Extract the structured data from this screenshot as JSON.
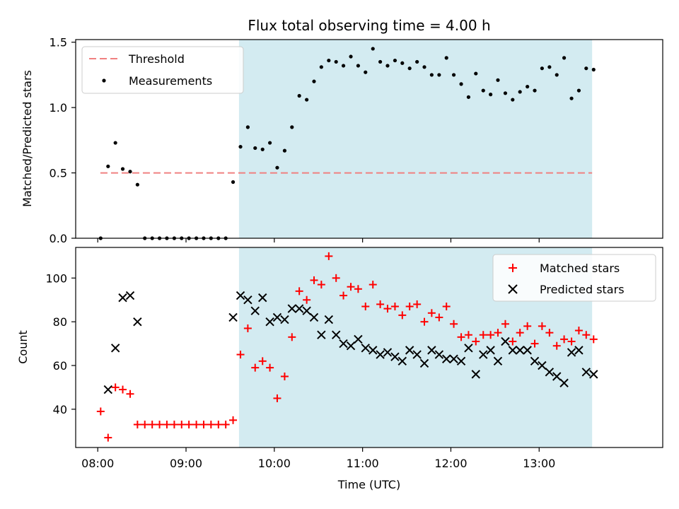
{
  "chart_data": [
    {
      "type": "scatter",
      "title": "Flux total observing time = 4.00 h",
      "ylabel": "Matched/Predicted stars",
      "xlabel": "",
      "ylim": [
        0,
        1.52
      ],
      "yticks": [
        0,
        0.5,
        1.0,
        1.5
      ],
      "ytick_labels": [
        "0.0",
        "0.5",
        "1.0",
        "1.5"
      ],
      "xlim_hours": [
        7.75,
        14.4
      ],
      "shaded_span_hours": [
        9.6,
        13.6
      ],
      "shade_color": "#d3ebf1",
      "legend_position": "top-left",
      "threshold": {
        "name": "Threshold",
        "value": 0.5,
        "x_range_hours": [
          8.03,
          13.6
        ],
        "color": "#f08080"
      },
      "series": [
        {
          "name": "Measurements",
          "color": "#000000",
          "marker": "dot",
          "x": [
            8.033,
            8.117,
            8.2,
            8.283,
            8.367,
            8.45,
            8.533,
            8.617,
            8.7,
            8.783,
            8.867,
            8.95,
            9.033,
            9.117,
            9.2,
            9.283,
            9.367,
            9.45,
            9.533,
            9.617,
            9.7,
            9.783,
            9.867,
            9.95,
            10.033,
            10.117,
            10.2,
            10.283,
            10.367,
            10.45,
            10.533,
            10.617,
            10.7,
            10.783,
            10.867,
            10.95,
            11.033,
            11.117,
            11.2,
            11.283,
            11.367,
            11.45,
            11.533,
            11.617,
            11.7,
            11.783,
            11.867,
            11.95,
            12.033,
            12.117,
            12.2,
            12.283,
            12.367,
            12.45,
            12.533,
            12.617,
            12.7,
            12.783,
            12.867,
            12.95,
            13.033,
            13.117,
            13.2,
            13.283,
            13.367,
            13.45,
            13.533,
            13.617
          ],
          "y": [
            0.0,
            0.55,
            0.73,
            0.53,
            0.51,
            0.41,
            0.0,
            0.0,
            0.0,
            0.0,
            0.0,
            0.0,
            0.0,
            0.0,
            0.0,
            0.0,
            0.0,
            0.0,
            0.43,
            0.7,
            0.85,
            0.69,
            0.68,
            0.73,
            0.54,
            0.67,
            0.85,
            1.09,
            1.06,
            1.2,
            1.31,
            1.36,
            1.35,
            1.32,
            1.39,
            1.32,
            1.27,
            1.45,
            1.35,
            1.32,
            1.36,
            1.34,
            1.3,
            1.35,
            1.31,
            1.25,
            1.25,
            1.38,
            1.25,
            1.18,
            1.08,
            1.26,
            1.13,
            1.1,
            1.21,
            1.11,
            1.06,
            1.12,
            1.16,
            1.13,
            1.3,
            1.31,
            1.25,
            1.38,
            1.07,
            1.13,
            1.3,
            1.29
          ]
        }
      ]
    },
    {
      "type": "scatter",
      "ylabel": "Count",
      "xlabel": "Time (UTC)",
      "ylim": [
        22.5,
        114
      ],
      "yticks": [
        40,
        60,
        80,
        100
      ],
      "ytick_labels": [
        "40",
        "60",
        "80",
        "100"
      ],
      "xticks_hours": [
        8,
        9,
        10,
        11,
        12,
        13
      ],
      "xtick_labels": [
        "08:00",
        "09:00",
        "10:00",
        "11:00",
        "12:00",
        "13:00"
      ],
      "xlim_hours": [
        7.75,
        14.4
      ],
      "shaded_span_hours": [
        9.6,
        13.6
      ],
      "shade_color": "#d3ebf1",
      "legend_position": "top-right",
      "series": [
        {
          "name": "Matched stars",
          "color": "#ff0000",
          "marker": "plus",
          "x": [
            8.033,
            8.117,
            8.2,
            8.283,
            8.367,
            8.45,
            8.533,
            8.617,
            8.7,
            8.783,
            8.867,
            8.95,
            9.033,
            9.117,
            9.2,
            9.283,
            9.367,
            9.45,
            9.533,
            9.617,
            9.7,
            9.783,
            9.867,
            9.95,
            10.033,
            10.117,
            10.2,
            10.283,
            10.367,
            10.45,
            10.533,
            10.617,
            10.7,
            10.783,
            10.867,
            10.95,
            11.033,
            11.117,
            11.2,
            11.283,
            11.367,
            11.45,
            11.533,
            11.617,
            11.7,
            11.783,
            11.867,
            11.95,
            12.033,
            12.117,
            12.2,
            12.283,
            12.367,
            12.45,
            12.533,
            12.617,
            12.7,
            12.783,
            12.867,
            12.95,
            13.033,
            13.117,
            13.2,
            13.283,
            13.367,
            13.45,
            13.533,
            13.617
          ],
          "y": [
            39,
            27,
            50,
            49,
            47,
            33,
            33,
            33,
            33,
            33,
            33,
            33,
            33,
            33,
            33,
            33,
            33,
            33,
            35,
            65,
            77,
            59,
            62,
            59,
            45,
            55,
            73,
            94,
            90,
            99,
            97,
            110,
            100,
            92,
            96,
            95,
            87,
            97,
            88,
            86,
            87,
            83,
            87,
            88,
            80,
            84,
            82,
            87,
            79,
            73,
            74,
            71,
            74,
            74,
            75,
            79,
            71,
            75,
            78,
            70,
            78,
            75,
            69,
            72,
            71,
            76,
            74,
            72
          ]
        },
        {
          "name": "Predicted stars",
          "color": "#000000",
          "marker": "cross",
          "x": [
            8.117,
            8.2,
            8.283,
            8.367,
            8.45,
            9.533,
            9.617,
            9.7,
            9.783,
            9.867,
            9.95,
            10.033,
            10.117,
            10.2,
            10.283,
            10.367,
            10.45,
            10.533,
            10.617,
            10.7,
            10.783,
            10.867,
            10.95,
            11.033,
            11.117,
            11.2,
            11.283,
            11.367,
            11.45,
            11.533,
            11.617,
            11.7,
            11.783,
            11.867,
            11.95,
            12.033,
            12.117,
            12.2,
            12.283,
            12.367,
            12.45,
            12.533,
            12.617,
            12.7,
            12.783,
            12.867,
            12.95,
            13.033,
            13.117,
            13.2,
            13.283,
            13.367,
            13.45,
            13.533,
            13.617
          ],
          "y": [
            49,
            68,
            91,
            92,
            80,
            82,
            92,
            90,
            85,
            91,
            80,
            82,
            81,
            86,
            86,
            85,
            82,
            74,
            81,
            74,
            70,
            69,
            72,
            68,
            67,
            65,
            66,
            64,
            62,
            67,
            65,
            61,
            67,
            65,
            63,
            63,
            62,
            68,
            56,
            65,
            67,
            62,
            71,
            67,
            67,
            67,
            62,
            60,
            57,
            55,
            52,
            66,
            67,
            57,
            56
          ]
        }
      ]
    }
  ]
}
